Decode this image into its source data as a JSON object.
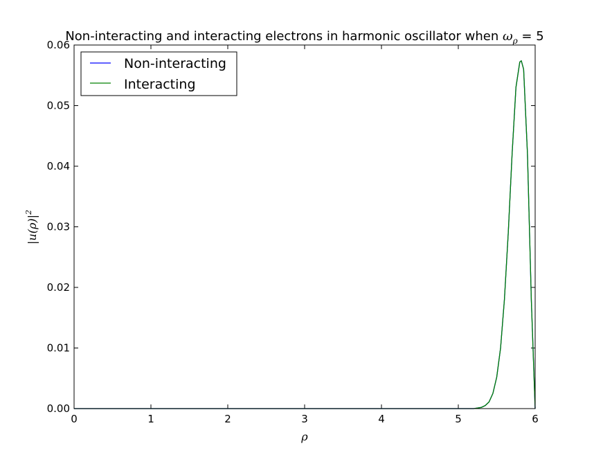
{
  "chart_data": {
    "type": "line",
    "title": "Non-interacting and interacting electrons in harmonic oscillator when ",
    "title_math": "ω",
    "title_math_sub": "ρ",
    "title_suffix": " = 5",
    "xlabel": "ρ",
    "ylabel": "|u(ρ)|",
    "ylabel_sup": "2",
    "xlim": [
      0,
      6
    ],
    "ylim": [
      0,
      0.06
    ],
    "x_ticks": [
      0,
      1,
      2,
      3,
      4,
      5,
      6
    ],
    "x_tick_labels": [
      "0",
      "1",
      "2",
      "3",
      "4",
      "5",
      "6"
    ],
    "y_ticks": [
      0.0,
      0.01,
      0.02,
      0.03,
      0.04,
      0.05,
      0.06
    ],
    "y_tick_labels": [
      "0.00",
      "0.01",
      "0.02",
      "0.03",
      "0.04",
      "0.05",
      "0.06"
    ],
    "grid": false,
    "legend_position": "top-left",
    "series": [
      {
        "name": "Non-interacting",
        "color": "#0000ff",
        "x": [
          0,
          5.0,
          5.2,
          5.3,
          5.35,
          5.4,
          5.45,
          5.5,
          5.55,
          5.6,
          5.65,
          5.7,
          5.75,
          5.8,
          5.82,
          5.85,
          5.9,
          5.95,
          6.0
        ],
        "y": [
          0,
          0,
          0.0,
          0.0002,
          0.0005,
          0.0011,
          0.0025,
          0.0052,
          0.01,
          0.018,
          0.029,
          0.042,
          0.053,
          0.0572,
          0.0574,
          0.056,
          0.042,
          0.018,
          0.0
        ]
      },
      {
        "name": "Interacting",
        "color": "#008000",
        "x": [
          0,
          5.0,
          5.2,
          5.3,
          5.35,
          5.4,
          5.45,
          5.5,
          5.55,
          5.6,
          5.65,
          5.7,
          5.75,
          5.8,
          5.82,
          5.85,
          5.9,
          5.95,
          6.0
        ],
        "y": [
          0,
          0,
          0.0,
          0.0002,
          0.0005,
          0.0011,
          0.0025,
          0.0052,
          0.01,
          0.018,
          0.029,
          0.042,
          0.053,
          0.0572,
          0.0574,
          0.056,
          0.042,
          0.018,
          0.0
        ]
      }
    ]
  }
}
